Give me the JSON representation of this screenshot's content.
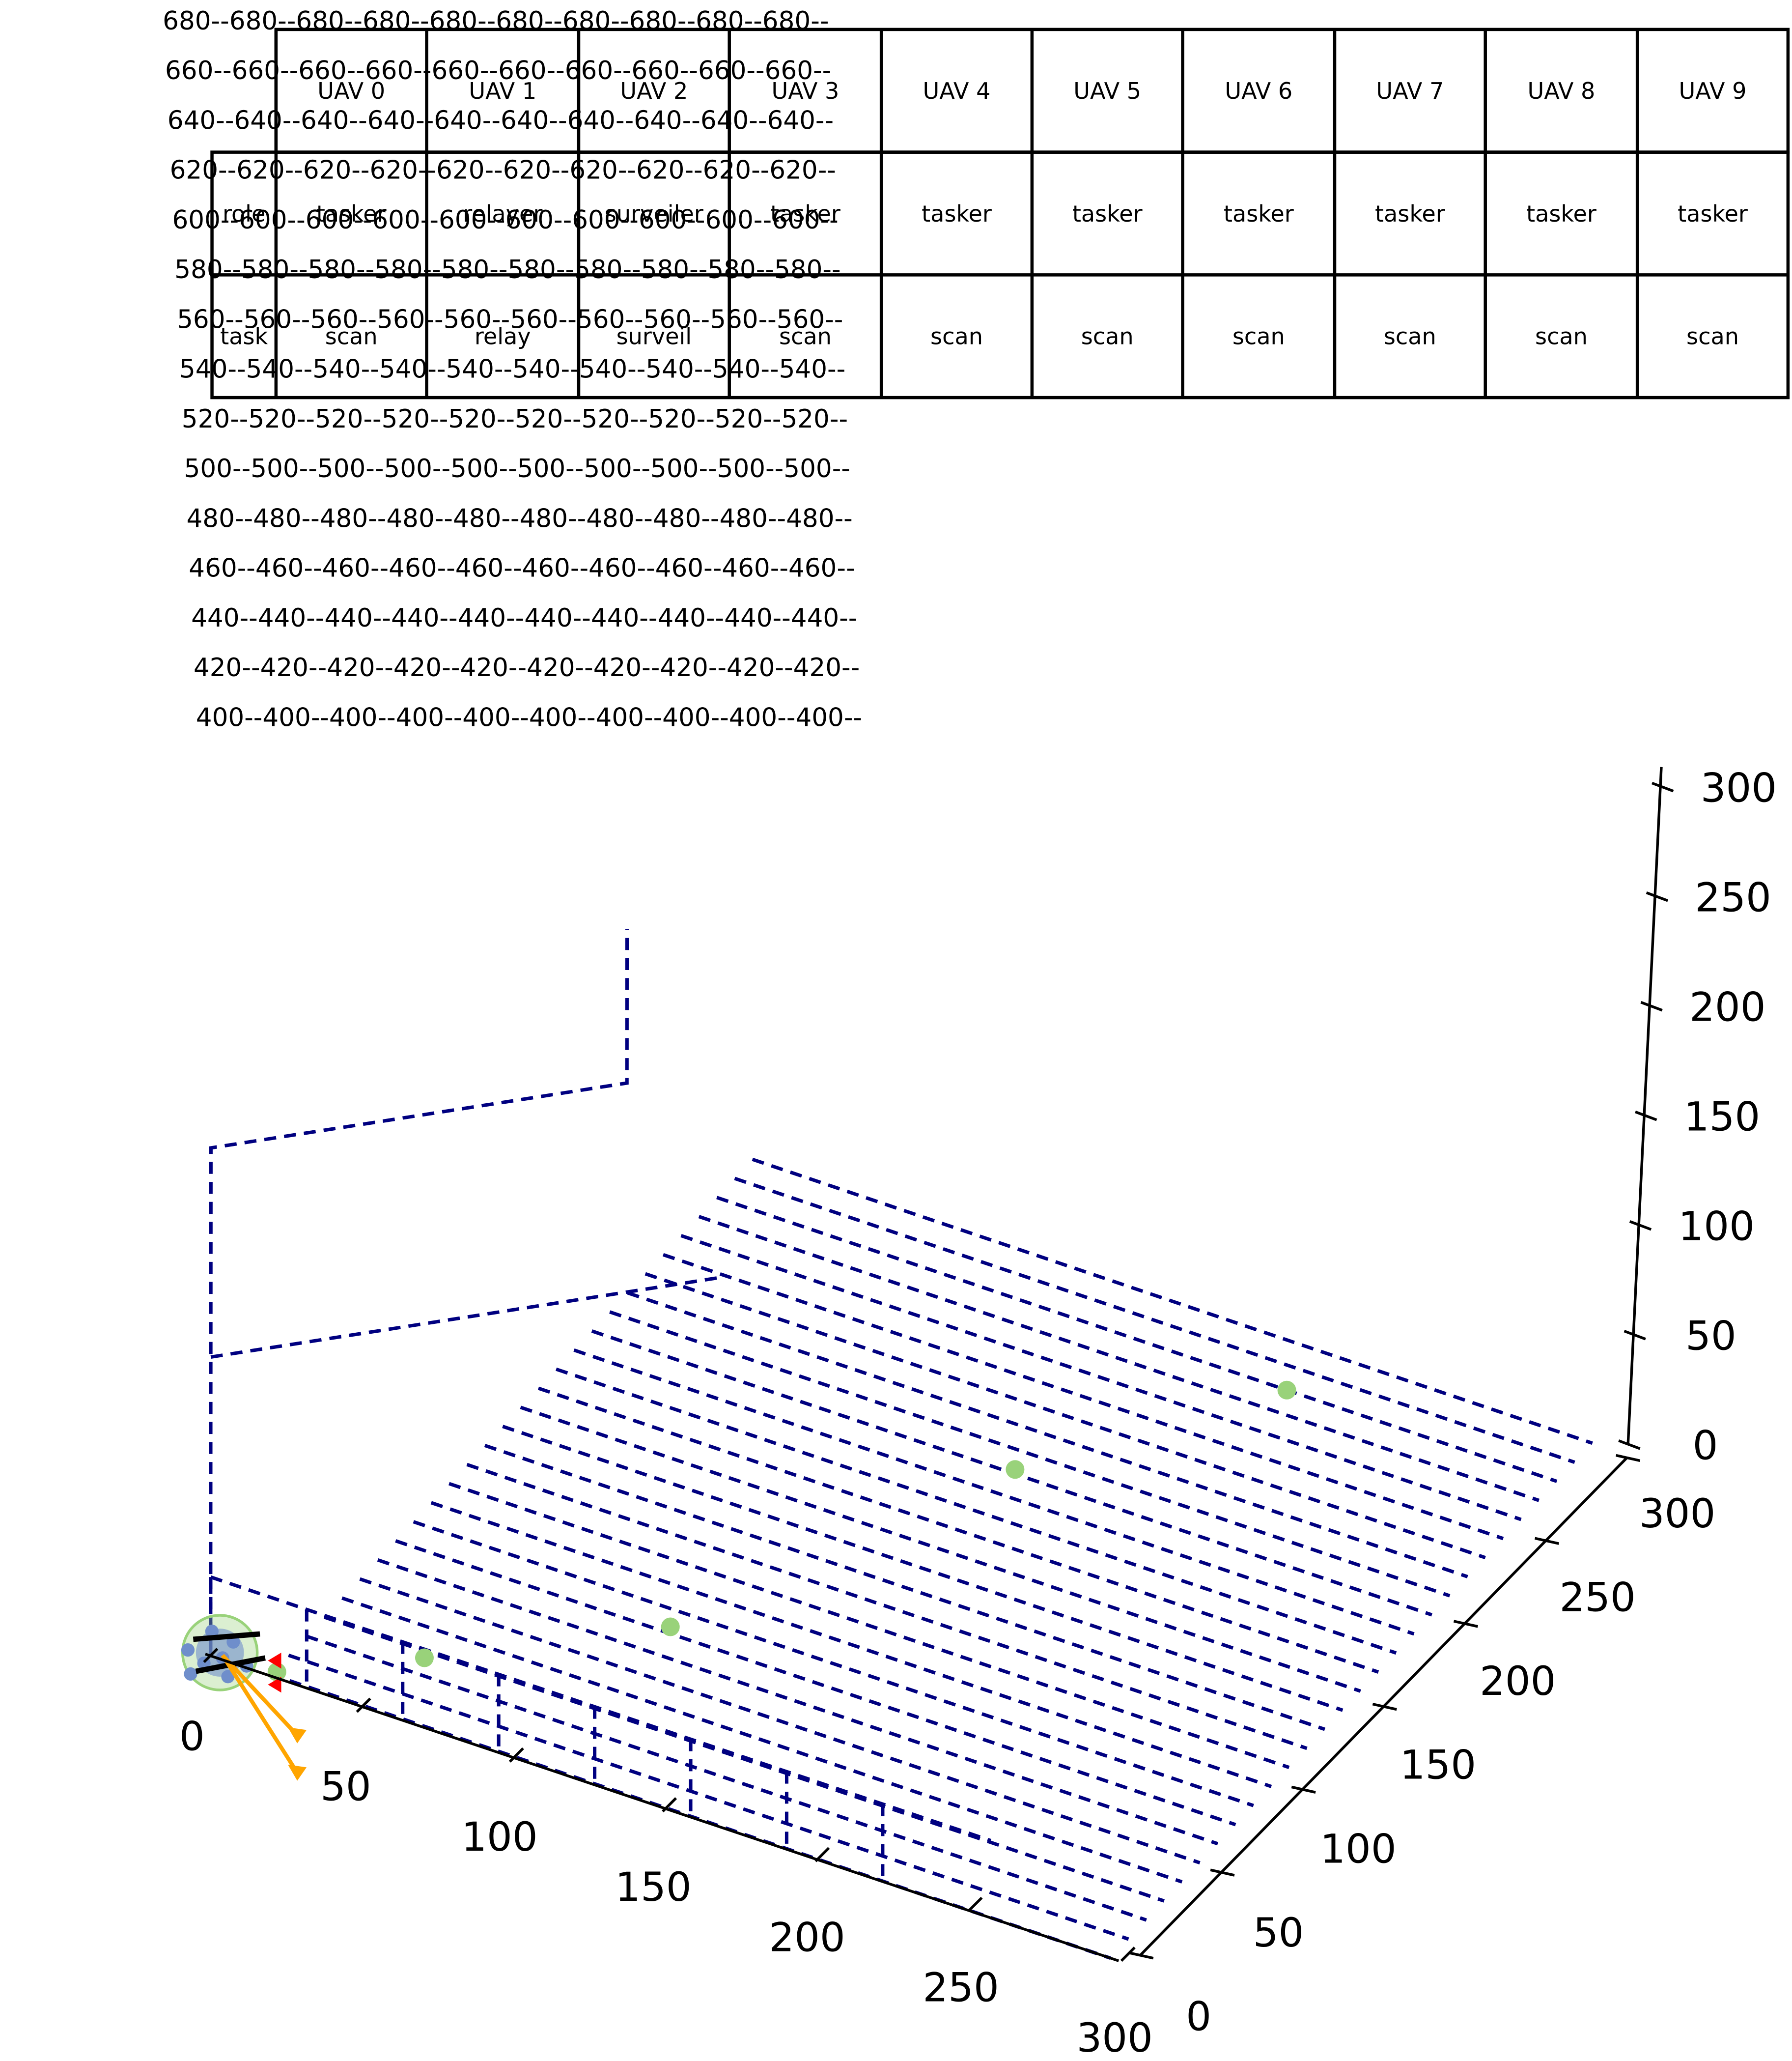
{
  "table": {
    "header": [
      "",
      "UAV 0",
      "UAV 1",
      "UAV 2",
      "UAV 3",
      "UAV 4",
      "UAV 5",
      "UAV 6",
      "UAV 7",
      "UAV 8",
      "UAV 9"
    ],
    "rows": [
      [
        "role",
        "tasker",
        "relayer",
        "surveiler",
        "tasker",
        "tasker",
        "tasker",
        "tasker",
        "tasker",
        "tasker",
        "tasker"
      ],
      [
        "task",
        "scan",
        "relay",
        "surveil",
        "scan",
        "scan",
        "scan",
        "scan",
        "scan",
        "scan",
        "scan"
      ]
    ]
  },
  "altitude_labels": [
    "680--680--680--680--680--680--680--680--680--680--",
    "660--660--660--660--660--660--660--660--660--660--",
    "640--640--640--640--640--640--640--640--640--640--",
    "620--620--620--620--620--620--620--620--620--620--",
    "600--600--600--600--600--600--600--600--600--600--",
    "580--580--580--580--580--580--580--580--580--580--",
    "560--560--560--560--560--560--560--560--560--560--",
    "540--540--540--540--540--540--540--540--540--540--",
    "520--520--520--520--520--520--520--520--520--520--",
    "500--500--500--500--500--500--500--500--500--500--",
    "480--480--480--480--480--480--480--480--480--480--",
    "460--460--460--460--460--460--460--460--460--460--",
    "440--440--440--440--440--440--440--440--440--440--",
    "420--420--420--420--420--420--420--420--420--420--",
    "400--400--400--400--400--400--400--400--400--400--"
  ],
  "chart_data": {
    "type": "scatter",
    "projection": "3d",
    "xlim": [
      0,
      300
    ],
    "ylim": [
      0,
      300
    ],
    "zlim": [
      0,
      300
    ],
    "x_ticks": [
      "0",
      "50",
      "100",
      "150",
      "200",
      "250",
      "300"
    ],
    "y_ticks": [
      "0",
      "50",
      "100",
      "150",
      "200",
      "250",
      "300"
    ],
    "z_ticks": [
      "0",
      "50",
      "100",
      "150",
      "200",
      "250",
      "300"
    ],
    "grid": false,
    "colors": {
      "path": "#000080",
      "target": "#99d27a",
      "uav": "#6f8ecb",
      "heading_red": "#ff0000",
      "heading_orange": "#ffa500"
    },
    "scan_lines": {
      "style": "dashed",
      "z": 0,
      "x_range": [
        0,
        300
      ],
      "y_start": 0,
      "y_step": 11,
      "count": 28
    },
    "target_points": [
      {
        "x": 21,
        "y": 2,
        "z": 0
      },
      {
        "x": 55,
        "y": 30,
        "z": 0
      },
      {
        "x": 110,
        "y": 80,
        "z": 0
      },
      {
        "x": 160,
        "y": 200,
        "z": 0
      },
      {
        "x": 210,
        "y": 275,
        "z": 0
      }
    ],
    "relay_path": [
      {
        "x": 0,
        "y": 0,
        "z": 0
      },
      {
        "x": 0,
        "y": 0,
        "z": 35
      },
      {
        "x": 0,
        "y": 0,
        "z": 135
      },
      {
        "x": 0,
        "y": 0,
        "z": 230
      },
      {
        "x": 90,
        "y": 90,
        "z": 230
      },
      {
        "x": 90,
        "y": 90,
        "z": 300
      }
    ],
    "relay_branch": [
      {
        "x": 0,
        "y": 0,
        "z": 135
      },
      {
        "x": 110,
        "y": 110,
        "z": 135
      }
    ],
    "surveil_box": {
      "y": 0,
      "z_top": 35,
      "segments": [
        {
          "x0": 0,
          "x1": 16
        },
        {
          "x0": 16,
          "x1": 32
        },
        {
          "x0": 32,
          "x1": 48
        },
        {
          "x0": 48,
          "x1": 64
        },
        {
          "x0": 64,
          "x1": 80
        },
        {
          "x0": 80,
          "x1": 96
        },
        {
          "x0": 96,
          "x1": 112
        },
        {
          "x0": 112,
          "x1": 128
        }
      ]
    },
    "base": {
      "x": 2,
      "y": 2,
      "z": 0
    }
  }
}
